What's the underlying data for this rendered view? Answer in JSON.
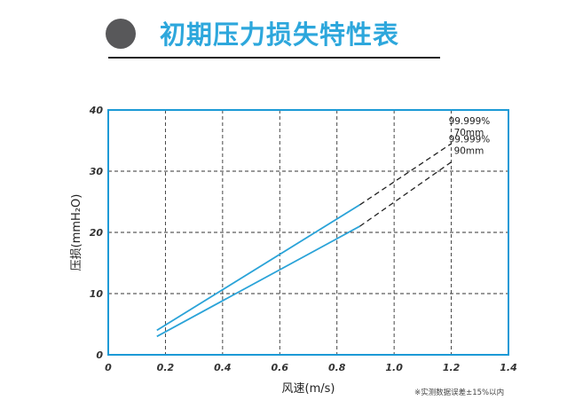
{
  "header": {
    "title": "初期压力损失特性表"
  },
  "note": "※实测数据误差±15%以内",
  "colors": {
    "accent": "#2da7dc",
    "frame": "#1c9ad6",
    "line": "#2aa3d8",
    "dash": "#222222",
    "bullet": "#58585a"
  },
  "chart_data": {
    "type": "line",
    "xlabel": "风速(m/s)",
    "ylabel": "压损(mmH₂O)",
    "xlim": [
      0,
      1.4
    ],
    "ylim": [
      0,
      40
    ],
    "xticks": [
      "0",
      "0.2",
      "0.4",
      "0.6",
      "0.8",
      "1.0",
      "1.2",
      "1.4"
    ],
    "yticks": [
      "0",
      "10",
      "20",
      "30",
      "40"
    ],
    "grid": true,
    "series": [
      {
        "name": "99.999% 70mm",
        "label_lines": [
          "99.999%",
          "70mm"
        ],
        "measured": [
          [
            0.17,
            4.0
          ],
          [
            0.88,
            24.5
          ]
        ],
        "extrapolated": [
          [
            0.88,
            24.5
          ],
          [
            1.2,
            34.5
          ]
        ]
      },
      {
        "name": "99.999% 90mm",
        "label_lines": [
          "99.999%",
          "90mm"
        ],
        "measured": [
          [
            0.17,
            3.0
          ],
          [
            0.88,
            21.0
          ]
        ],
        "extrapolated": [
          [
            0.88,
            21.0
          ],
          [
            1.2,
            31.5
          ]
        ]
      }
    ]
  }
}
